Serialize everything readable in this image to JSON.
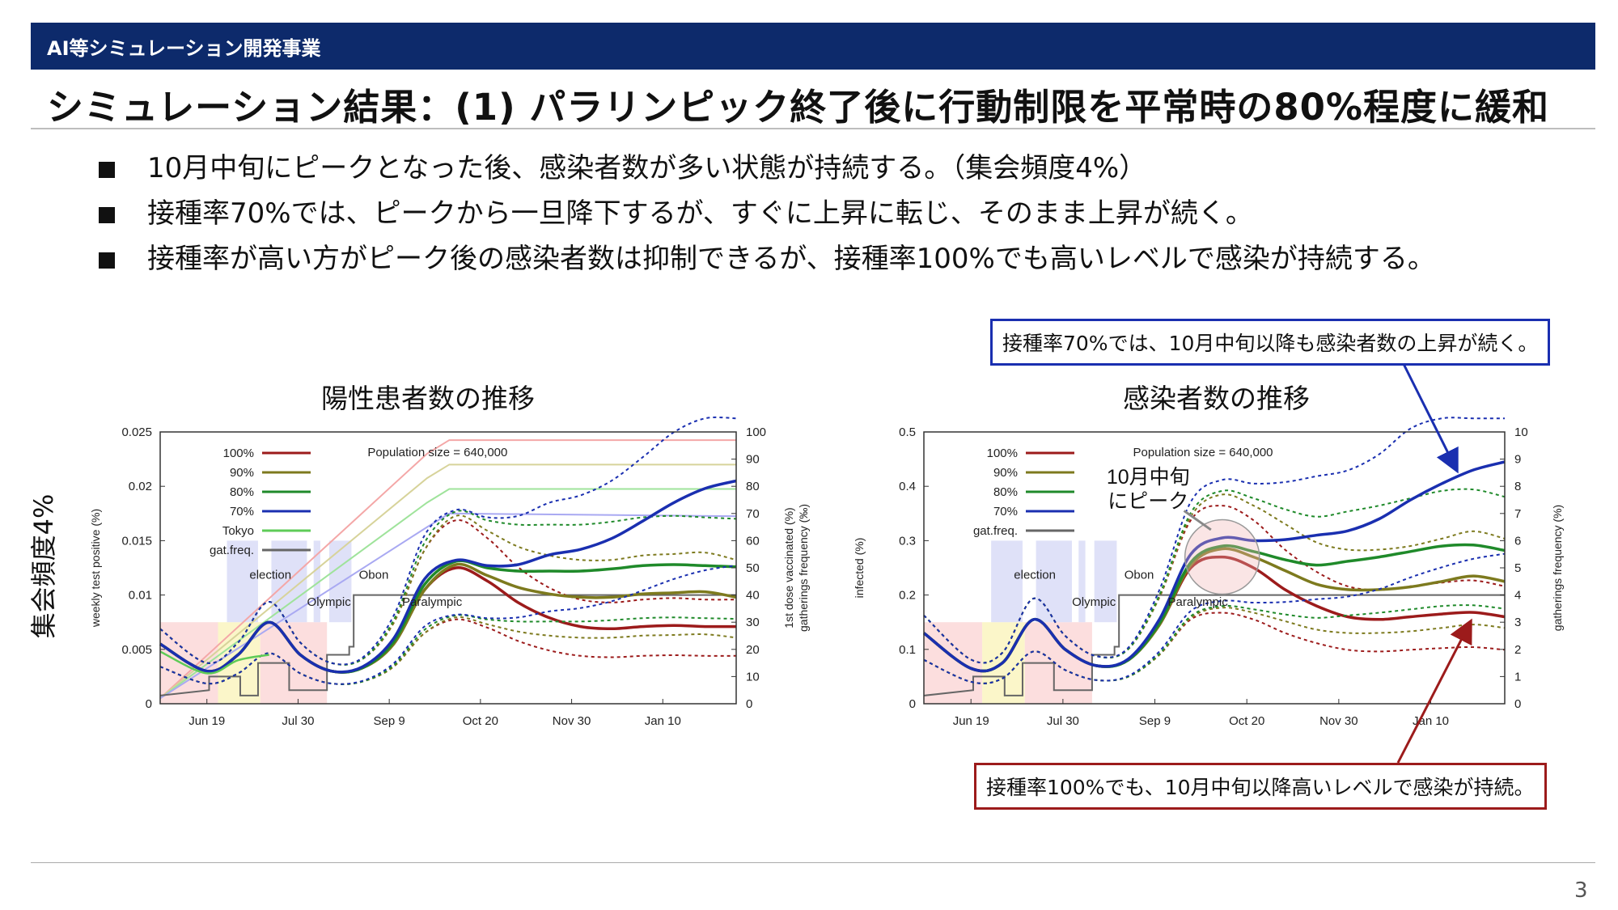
{
  "header": {
    "section": "AI等シミュレーション開発事業",
    "title": "シミュレーション結果：(1) パラリンピック終了後に行動制限を平常時の80%程度に緩和"
  },
  "bullets": [
    "10月中旬にピークとなった後、感染者数が多い状態が持続する。（集会頻度4%）",
    "接種率70%では、ピークから一旦降下するが、すぐに上昇に転じ、そのまま上昇が続く。",
    "接種率が高い方がピーク後の感染者数は抑制できるが、接種率100%でも高いレベルで感染が持続する。"
  ],
  "side_label": "集会頻度4%",
  "callouts": {
    "blue": "接種率70%では、10月中旬以降も感染者数の上昇が続く。",
    "red": "接種率100%でも、10月中旬以降高いレベルで感染が持続。"
  },
  "page_number": "3",
  "colors": {
    "header_bg": "#0d2a6b",
    "s100": "#9c1b1b",
    "s90": "#7d7a1e",
    "s80": "#1f8a2a",
    "s70": "#1a2fb0",
    "tokyo": "#5ecb57",
    "gatfreq": "#666666",
    "vacc100": "#f4a7a7",
    "vacc90": "#d7d39a",
    "vacc80": "#9fe39b",
    "vacc70": "#a9a9f2"
  },
  "chart_data": [
    {
      "type": "line",
      "title": "陽性患者数の推移",
      "ylabel": "weekly test positive (%)",
      "y2label_line1": "1st dose vaccinated (%)",
      "y2label_line2": "gatherings frequency (‰)",
      "x_ticks": [
        "Jun 19",
        "Jul 30",
        "Sep 9",
        "Oct 20",
        "Nov 30",
        "Jan 10"
      ],
      "y_ticks": [
        "0",
        "0.005",
        "0.01",
        "0.015",
        "0.02",
        "0.025"
      ],
      "y2_ticks": [
        "0",
        "10",
        "20",
        "30",
        "40",
        "50",
        "60",
        "70",
        "80",
        "90",
        "100"
      ],
      "ylim": [
        0,
        0.025
      ],
      "y2lim": [
        0,
        100
      ],
      "annotation": "Population size = 640,000",
      "event_labels": [
        "election",
        "Olympic",
        "Obon",
        "Paralympic"
      ],
      "legend": [
        "100%",
        "90%",
        "80%",
        "70%",
        "Tokyo",
        "gat.freq."
      ],
      "x_day": [
        0,
        21,
        35,
        49,
        63,
        77,
        91,
        105,
        119,
        133,
        147,
        161,
        175,
        189,
        203,
        217,
        231,
        245,
        259
      ],
      "series": [
        {
          "name": "100%",
          "values": [
            0.0055,
            0.003,
            0.0045,
            0.0075,
            0.0045,
            0.003,
            0.0033,
            0.0055,
            0.0105,
            0.0125,
            0.0113,
            0.0093,
            0.0079,
            0.0071,
            0.0069,
            0.0071,
            0.0072,
            0.0071,
            0.0071
          ]
        },
        {
          "name": "90%",
          "values": [
            0.0055,
            0.003,
            0.0045,
            0.0075,
            0.0045,
            0.003,
            0.0033,
            0.0055,
            0.0105,
            0.0128,
            0.0118,
            0.0107,
            0.0101,
            0.0098,
            0.0098,
            0.0101,
            0.0102,
            0.0103,
            0.0098
          ]
        },
        {
          "name": "80%",
          "values": [
            0.0055,
            0.003,
            0.0045,
            0.0075,
            0.0045,
            0.003,
            0.0033,
            0.0057,
            0.011,
            0.0131,
            0.0125,
            0.0122,
            0.0122,
            0.0122,
            0.0124,
            0.0127,
            0.0128,
            0.0127,
            0.0126
          ]
        },
        {
          "name": "70%",
          "values": [
            0.0055,
            0.003,
            0.0045,
            0.0075,
            0.0045,
            0.003,
            0.0034,
            0.006,
            0.0115,
            0.0132,
            0.0127,
            0.0128,
            0.0137,
            0.0142,
            0.0152,
            0.0168,
            0.0185,
            0.0198,
            0.0205
          ]
        },
        {
          "name": "Tokyo",
          "values": [
            0.0048,
            0.0028,
            0.004,
            0.0045
          ]
        }
      ]
    },
    {
      "type": "line",
      "title": "感染者数の推移",
      "ylabel": "infected (%)",
      "y2label": "gatherings frequency (%)",
      "x_ticks": [
        "Jun 19",
        "Jul 30",
        "Sep 9",
        "Oct 20",
        "Nov 30",
        "Jan 10"
      ],
      "y_ticks": [
        "0",
        "0.1",
        "0.2",
        "0.3",
        "0.4",
        "0.5"
      ],
      "y2_ticks": [
        "0",
        "1",
        "2",
        "3",
        "4",
        "5",
        "6",
        "7",
        "8",
        "9",
        "10"
      ],
      "ylim": [
        0,
        0.5
      ],
      "y2lim": [
        0,
        10
      ],
      "annotation": "Population size = 640,000",
      "event_labels": [
        "election",
        "Olympic",
        "Obon",
        "Paralympic"
      ],
      "legend": [
        "100%",
        "90%",
        "80%",
        "70%",
        "gat.freq."
      ],
      "peak_label_line1": "10月中旬",
      "peak_label_line2": "にピーク",
      "x_day": [
        0,
        21,
        35,
        49,
        63,
        77,
        91,
        105,
        119,
        133,
        147,
        161,
        175,
        189,
        203,
        217,
        231,
        245,
        259
      ],
      "series": [
        {
          "name": "100%",
          "values": [
            0.13,
            0.065,
            0.075,
            0.155,
            0.1,
            0.07,
            0.08,
            0.145,
            0.25,
            0.27,
            0.25,
            0.21,
            0.18,
            0.16,
            0.155,
            0.16,
            0.165,
            0.168,
            0.16
          ]
        },
        {
          "name": "90%",
          "values": [
            0.13,
            0.065,
            0.075,
            0.155,
            0.1,
            0.07,
            0.08,
            0.145,
            0.255,
            0.285,
            0.27,
            0.245,
            0.22,
            0.21,
            0.21,
            0.215,
            0.225,
            0.235,
            0.225
          ]
        },
        {
          "name": "80%",
          "values": [
            0.13,
            0.065,
            0.075,
            0.155,
            0.1,
            0.07,
            0.08,
            0.148,
            0.26,
            0.29,
            0.28,
            0.265,
            0.255,
            0.262,
            0.27,
            0.28,
            0.29,
            0.292,
            0.282
          ]
        },
        {
          "name": "70%",
          "values": [
            0.13,
            0.065,
            0.075,
            0.155,
            0.1,
            0.07,
            0.082,
            0.155,
            0.275,
            0.305,
            0.3,
            0.302,
            0.31,
            0.318,
            0.34,
            0.375,
            0.405,
            0.43,
            0.445
          ]
        }
      ]
    }
  ]
}
